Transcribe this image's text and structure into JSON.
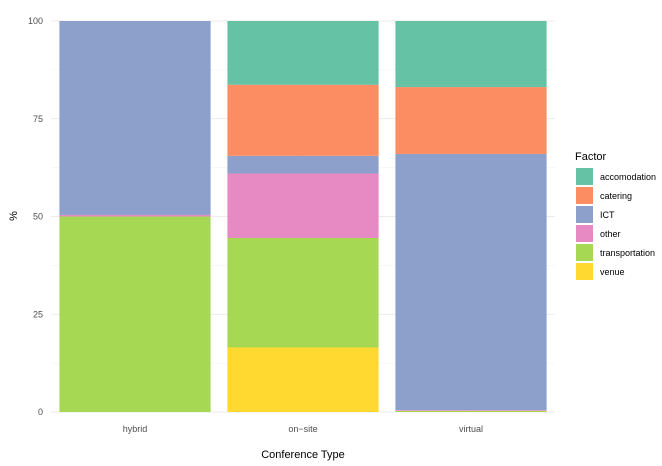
{
  "chart_data": {
    "type": "bar",
    "stacked": true,
    "title": "",
    "xlabel": "Conference Type",
    "ylabel": "%",
    "ylim": [
      0,
      100
    ],
    "yticks": [
      0,
      25,
      50,
      75,
      100
    ],
    "grid": true,
    "legend_position": "right",
    "legend_title": "Factor",
    "categories": [
      "hybrid",
      "on−site",
      "virtual"
    ],
    "series": [
      {
        "name": "venue",
        "color": "#FFD92F",
        "values": [
          0,
          16.5,
          0
        ]
      },
      {
        "name": "transportation",
        "color": "#A6D854",
        "values": [
          50,
          28,
          0.3
        ]
      },
      {
        "name": "other",
        "color": "#E78AC3",
        "values": [
          0.4,
          16.5,
          0.2
        ]
      },
      {
        "name": "ICT",
        "color": "#8DA0CB",
        "values": [
          49.6,
          4.5,
          65.5
        ]
      },
      {
        "name": "catering",
        "color": "#FC8D62",
        "values": [
          0,
          18.2,
          17.1
        ]
      },
      {
        "name": "accomodation",
        "color": "#66C2A5",
        "values": [
          0,
          16.3,
          16.9
        ]
      }
    ],
    "legend_order": [
      "accomodation",
      "catering",
      "ICT",
      "other",
      "transportation",
      "venue"
    ]
  }
}
